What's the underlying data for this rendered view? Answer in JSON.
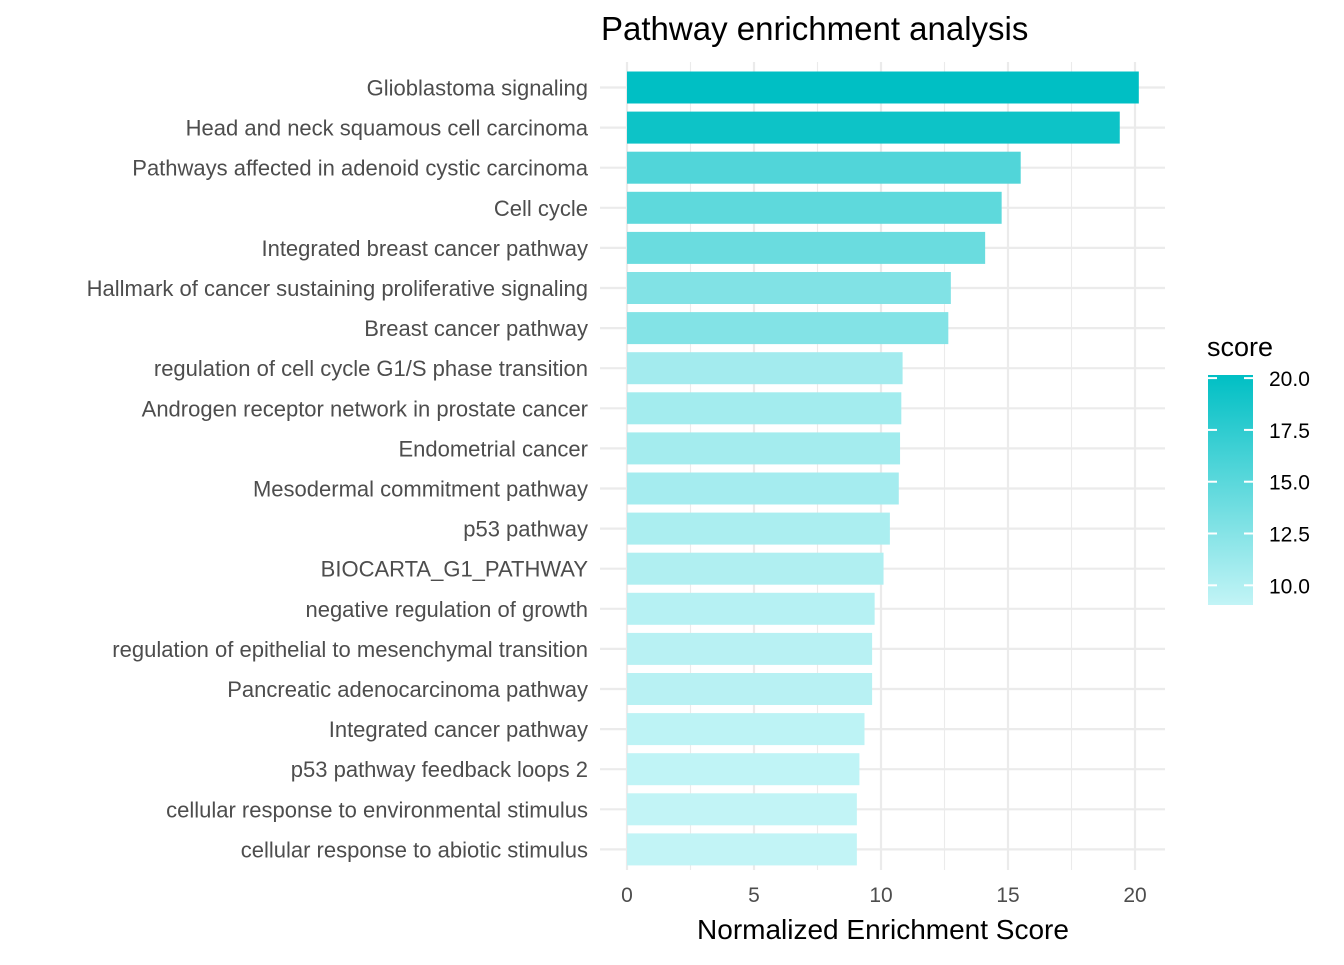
{
  "chart_data": {
    "type": "bar",
    "orientation": "horizontal",
    "title": "Pathway enrichment analysis",
    "xlabel": "Normalized Enrichment Score",
    "ylabel": "",
    "xlim": [
      0,
      20.2
    ],
    "xticks": [
      0,
      5,
      10,
      15,
      20
    ],
    "grid": true,
    "categories": [
      "Glioblastoma signaling",
      "Head and neck squamous cell carcinoma",
      "Pathways affected in adenoid cystic carcinoma",
      "Cell cycle",
      "Integrated breast cancer pathway",
      "Hallmark of cancer sustaining proliferative signaling",
      "Breast cancer pathway",
      "regulation of cell cycle G1/S phase transition",
      "Androgen receptor network in prostate cancer",
      "Endometrial cancer",
      "Mesodermal commitment pathway",
      "p53 pathway",
      "BIOCARTA_G1_PATHWAY",
      "negative regulation of growth",
      "regulation of epithelial to mesenchymal transition",
      "Pancreatic adenocarcinoma pathway",
      "Integrated cancer pathway",
      "p53 pathway feedback loops 2",
      "cellular response to environmental stimulus",
      "cellular response to abiotic stimulus"
    ],
    "values": [
      20.15,
      19.4,
      15.5,
      14.75,
      14.1,
      12.75,
      12.65,
      10.85,
      10.8,
      10.75,
      10.7,
      10.35,
      10.1,
      9.75,
      9.65,
      9.65,
      9.35,
      9.15,
      9.05,
      9.05
    ],
    "legend": {
      "title": "score",
      "position": "right",
      "ticks": [
        20.0,
        17.5,
        15.0,
        12.5,
        10.0
      ],
      "tick_labels": [
        "20.0",
        "17.5",
        "15.0",
        "12.5",
        "10.0"
      ],
      "range": [
        9.05,
        20.15
      ],
      "color_low": "#c2f4f6",
      "color_high": "#00bfc4"
    },
    "colors": {
      "grid": "#ebebeb",
      "text": "#4d4d4d",
      "title": "#000000"
    }
  }
}
